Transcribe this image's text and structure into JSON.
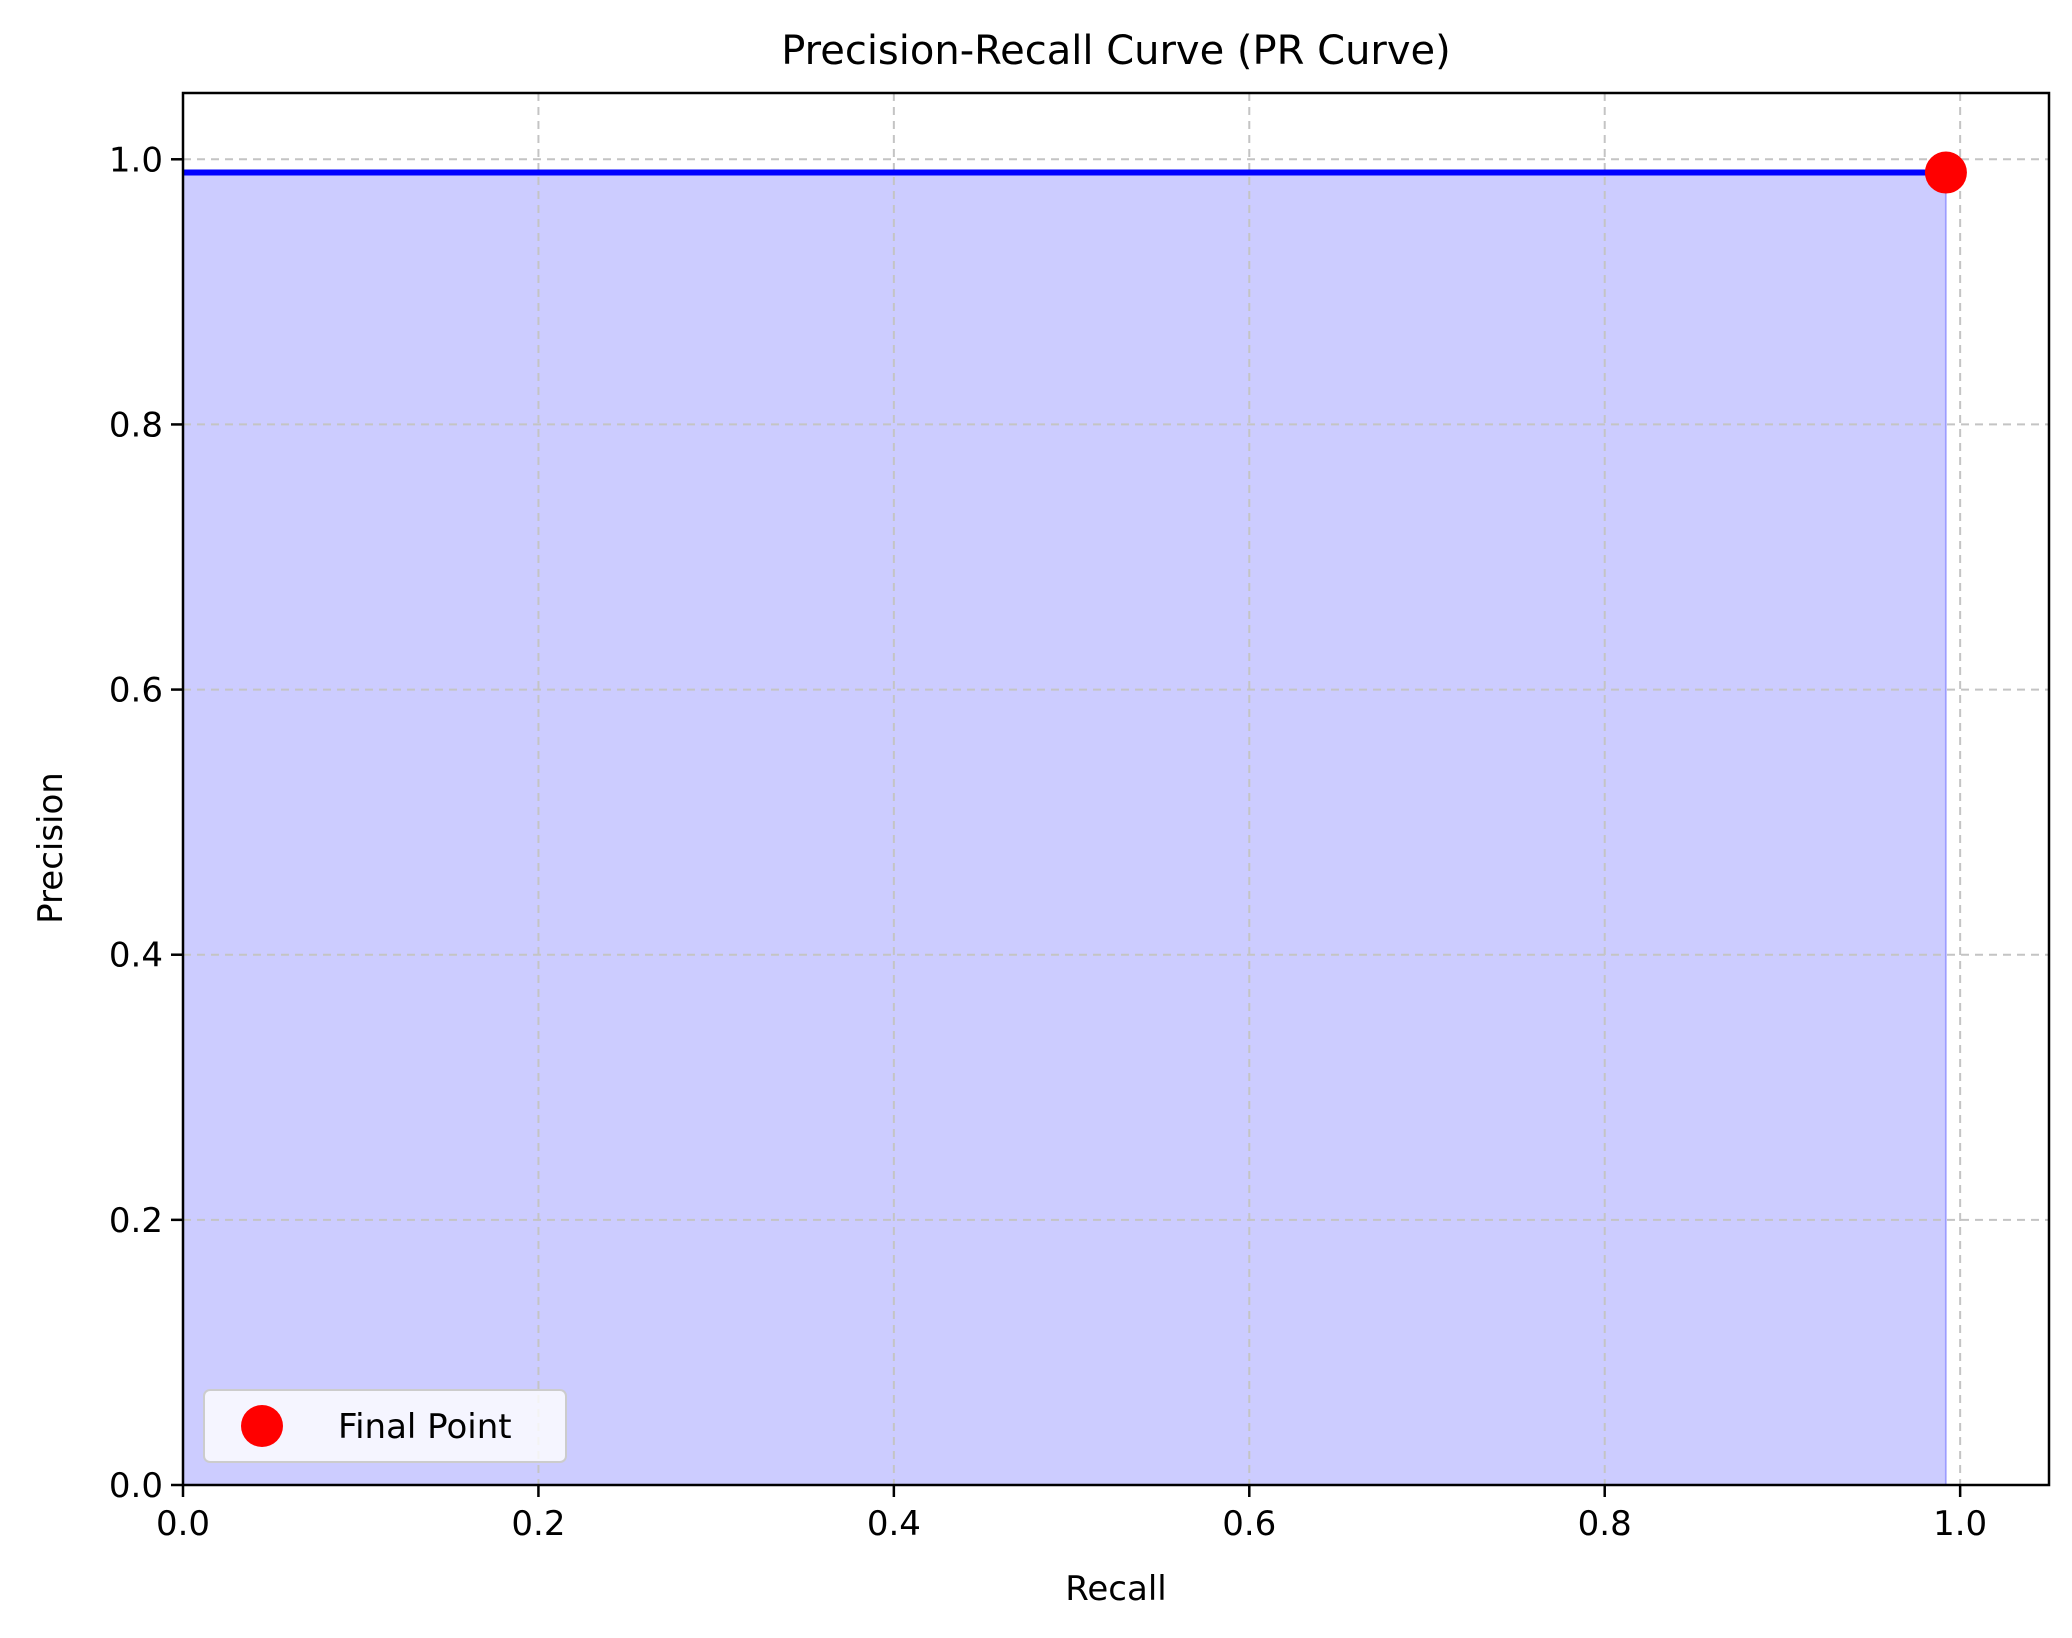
{
  "chart_data": {
    "type": "area",
    "title": "Precision-Recall Curve (PR Curve)",
    "xlabel": "Recall",
    "ylabel": "Precision",
    "xlim": [
      0,
      1.05
    ],
    "ylim": [
      0,
      1.05
    ],
    "x_ticks": [
      0.0,
      0.2,
      0.4,
      0.6,
      0.8,
      1.0
    ],
    "x_tick_labels": [
      "0.0",
      "0.2",
      "0.4",
      "0.6",
      "0.8",
      "1.0"
    ],
    "y_ticks": [
      0.0,
      0.2,
      0.4,
      0.6,
      0.8,
      1.0
    ],
    "y_tick_labels": [
      "0.0",
      "0.2",
      "0.4",
      "0.6",
      "0.8",
      "1.0"
    ],
    "grid": true,
    "legend_position": "lower-left",
    "series": [
      {
        "type": "line-with-fill",
        "color": "#0000ff",
        "fill_color": "#ccccff",
        "x": [
          0.0,
          0.992
        ],
        "y": [
          0.99,
          0.99
        ]
      },
      {
        "type": "scatter",
        "name": "Final Point",
        "color": "#ff0000",
        "x": [
          0.992
        ],
        "y": [
          0.99
        ]
      }
    ]
  }
}
